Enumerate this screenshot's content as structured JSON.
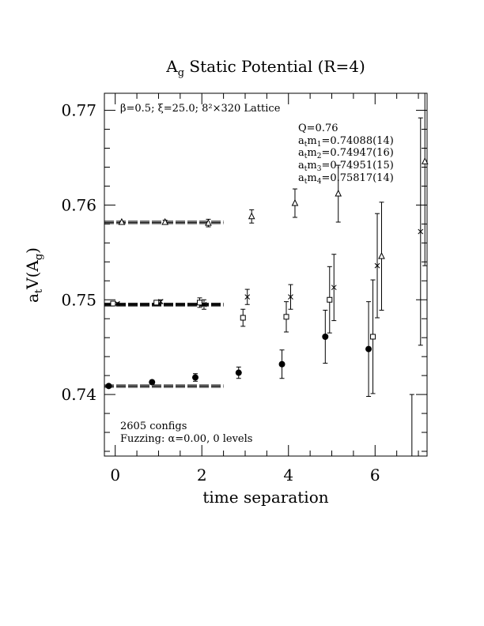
{
  "chart_data": {
    "type": "scatter",
    "title": "A_g Static Potential (R=4)",
    "title_main": "A",
    "title_sub": "g",
    "title_rest": " Static Potential (R=4)",
    "subtitle": "β=0.5; ξ=25.0; 8²×320 Lattice",
    "xlabel": "time separation",
    "ylabel": "a_tV(A_g)",
    "ylabel_parts": {
      "a": "a",
      "a_sub": "t",
      "main": "V(A",
      "main_sub": "g",
      "close": ")"
    },
    "xlim": [
      -0.25,
      7.2
    ],
    "ylim": [
      0.7335,
      0.7718
    ],
    "x_ticks": [
      0,
      2,
      4,
      6
    ],
    "x_tick_labels": [
      "0",
      "2",
      "4",
      "6"
    ],
    "y_ticks": [
      0.74,
      0.75,
      0.76,
      0.77
    ],
    "y_tick_labels": [
      "0.74",
      "0.75",
      "0.76",
      "0.77"
    ],
    "fit_box": {
      "q_label": "Q=0.76",
      "lines": [
        {
          "prefix": "a",
          "sub1": "t",
          "mid": "m",
          "sub2": "1",
          "value": "=0.74088(14)"
        },
        {
          "prefix": "a",
          "sub1": "t",
          "mid": "m",
          "sub2": "2",
          "value": "=0.74947(16)"
        },
        {
          "prefix": "a",
          "sub1": "t",
          "mid": "m",
          "sub2": "3",
          "value": "=0.74951(15)"
        },
        {
          "prefix": "a",
          "sub1": "t",
          "mid": "m",
          "sub2": "4",
          "value": "=0.75817(14)"
        }
      ]
    },
    "footer": {
      "configs": "2605 configs",
      "fuzzing": "Fuzzing: α=0.00, 0 levels"
    },
    "fit_lines": [
      {
        "name": "m1",
        "value": 0.74088,
        "xrange": [
          -0.25,
          2.5
        ]
      },
      {
        "name": "m2",
        "value": 0.74947,
        "xrange": [
          -0.25,
          2.5
        ]
      },
      {
        "name": "m3",
        "value": 0.74951,
        "xrange": [
          -0.25,
          2.5
        ]
      },
      {
        "name": "m4",
        "value": 0.75817,
        "xrange": [
          -0.25,
          2.5
        ]
      }
    ],
    "series": [
      {
        "marker": "filled-circle",
        "points": [
          {
            "x": -0.15,
            "y": 0.7409,
            "err": 0.0001
          },
          {
            "x": 0.85,
            "y": 0.7413,
            "err": 0.0002
          },
          {
            "x": 1.85,
            "y": 0.7418,
            "err": 0.0004
          },
          {
            "x": 2.85,
            "y": 0.7423,
            "err": 0.0006
          },
          {
            "x": 3.85,
            "y": 0.7432,
            "err": 0.0015
          },
          {
            "x": 4.85,
            "y": 0.7461,
            "err": 0.0028
          },
          {
            "x": 5.85,
            "y": 0.7448,
            "err": 0.005
          },
          {
            "x": 6.85,
            "y": 0.73,
            "err": 0.01
          }
        ]
      },
      {
        "marker": "open-square",
        "points": [
          {
            "x": -0.05,
            "y": 0.7496,
            "err": 0.0001
          },
          {
            "x": 0.95,
            "y": 0.7497,
            "err": 0.0002
          },
          {
            "x": 1.95,
            "y": 0.7497,
            "err": 0.0005
          },
          {
            "x": 2.95,
            "y": 0.7481,
            "err": 0.0009
          },
          {
            "x": 3.95,
            "y": 0.7482,
            "err": 0.0016
          },
          {
            "x": 4.95,
            "y": 0.75,
            "err": 0.0035
          },
          {
            "x": 5.95,
            "y": 0.7461,
            "err": 0.006
          }
        ]
      },
      {
        "marker": "cross",
        "points": [
          {
            "x": 0.05,
            "y": 0.7496,
            "err": 0.0001
          },
          {
            "x": 1.05,
            "y": 0.7498,
            "err": 0.0002
          },
          {
            "x": 2.05,
            "y": 0.7495,
            "err": 0.0005
          },
          {
            "x": 3.05,
            "y": 0.7503,
            "err": 0.0008
          },
          {
            "x": 4.05,
            "y": 0.7503,
            "err": 0.0013
          },
          {
            "x": 5.05,
            "y": 0.7513,
            "err": 0.0035
          },
          {
            "x": 6.05,
            "y": 0.7536,
            "err": 0.0055
          },
          {
            "x": 7.05,
            "y": 0.7572,
            "err": 0.012
          }
        ]
      },
      {
        "marker": "open-triangle",
        "points": [
          {
            "x": 0.15,
            "y": 0.7582,
            "err": 0.0001
          },
          {
            "x": 1.15,
            "y": 0.7582,
            "err": 0.0002
          },
          {
            "x": 2.15,
            "y": 0.7581,
            "err": 0.0004
          },
          {
            "x": 3.15,
            "y": 0.7588,
            "err": 0.0007
          },
          {
            "x": 4.15,
            "y": 0.7602,
            "err": 0.0015
          },
          {
            "x": 5.15,
            "y": 0.7612,
            "err": 0.003
          },
          {
            "x": 6.15,
            "y": 0.7546,
            "err": 0.0057
          },
          {
            "x": 7.15,
            "y": 0.7646,
            "err": 0.011
          }
        ]
      }
    ],
    "legend": "none",
    "grid": false
  }
}
